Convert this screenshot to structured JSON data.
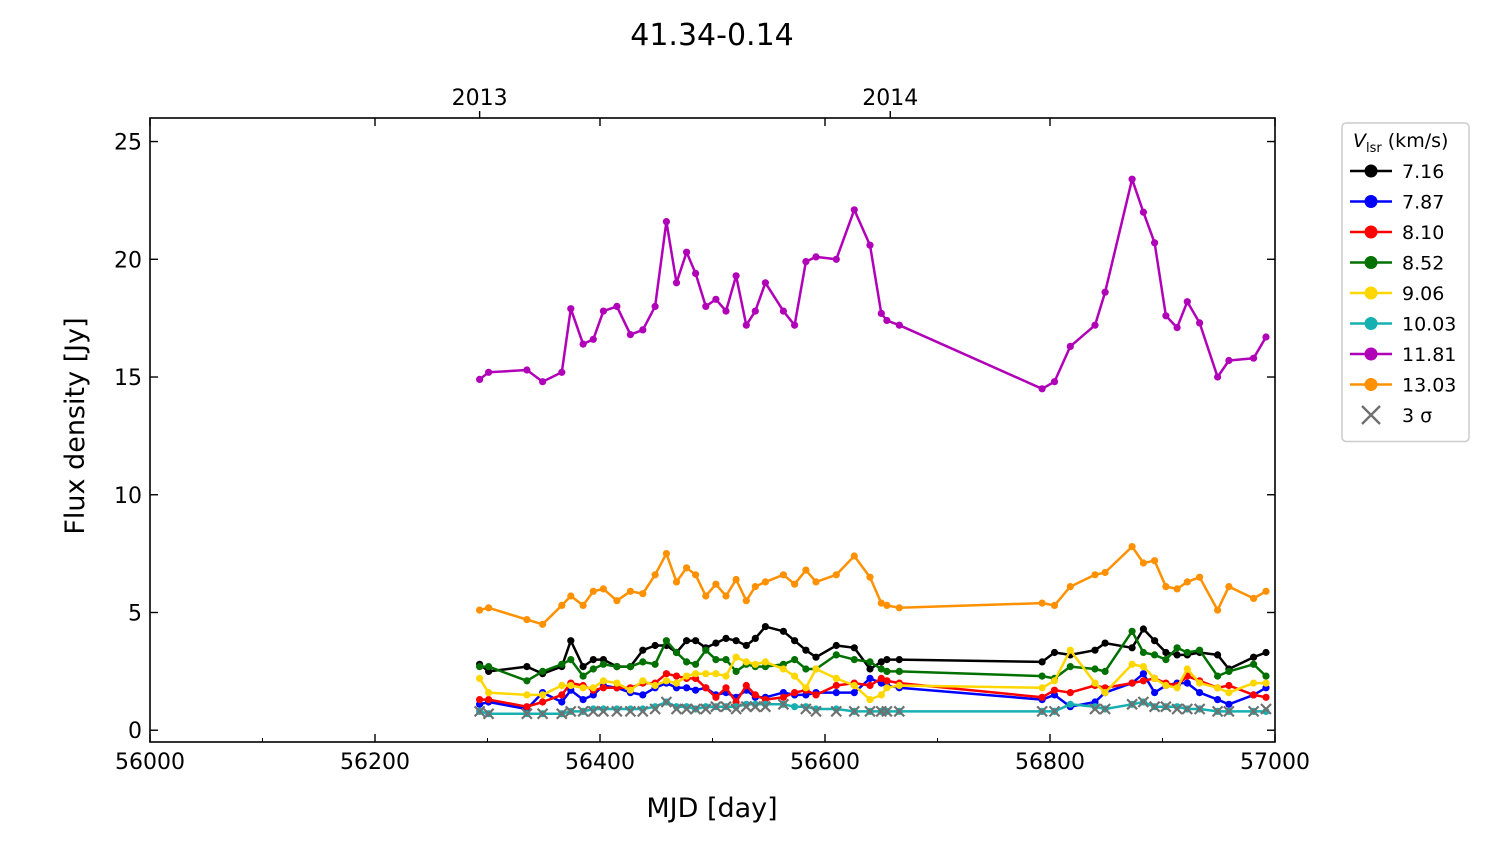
{
  "chart_data": {
    "type": "line",
    "title": "41.34-0.14",
    "xlabel": "MJD [day]",
    "ylabel": "Flux density [Jy]",
    "xlim": [
      56000,
      57000
    ],
    "ylim": [
      -0.5,
      26
    ],
    "xticks": [
      56000,
      56200,
      56400,
      56600,
      56800,
      57000
    ],
    "xtick_labels": [
      "56000",
      "56200",
      "56400",
      "56600",
      "56800",
      "57000"
    ],
    "yticks": [
      0,
      5,
      10,
      15,
      20,
      25
    ],
    "ytick_labels": [
      "0",
      "5",
      "10",
      "15",
      "20",
      "25"
    ],
    "top_axis": {
      "ticks": [
        56293,
        56658
      ],
      "labels": [
        "2013",
        "2014"
      ]
    },
    "grid": false,
    "legend": {
      "placement": "outside-right",
      "title_main": "V",
      "title_sub": "lsr",
      "title_rest": " (km/s)",
      "upper_limit_label": "3 σ"
    },
    "x": [
      56293,
      56301,
      56335,
      56349,
      56366,
      56374,
      56385,
      56394,
      56403,
      56415,
      56427,
      56438,
      56449,
      56459,
      56468,
      56477,
      56485,
      56494,
      56503,
      56512,
      56521,
      56530,
      56538,
      56547,
      56563,
      56573,
      56583,
      56592,
      56610,
      56626,
      56640,
      56650,
      56655,
      56666,
      56793,
      56804,
      56818,
      56840,
      56849,
      56873,
      56883,
      56893,
      56903,
      56913,
      56922,
      56933,
      56949,
      56959,
      56981,
      56992
    ],
    "series": [
      {
        "name": "7.16",
        "color": "#000000",
        "values": [
          2.8,
          2.5,
          2.7,
          2.4,
          2.7,
          3.8,
          2.7,
          3.0,
          3.0,
          2.7,
          2.7,
          3.4,
          3.6,
          3.6,
          3.3,
          3.8,
          3.8,
          3.5,
          3.7,
          3.9,
          3.8,
          3.6,
          3.9,
          4.4,
          4.2,
          3.8,
          3.4,
          3.1,
          3.6,
          3.5,
          2.6,
          2.9,
          3.0,
          3.0,
          2.9,
          3.3,
          3.2,
          3.4,
          3.7,
          3.5,
          4.3,
          3.8,
          3.3,
          3.2,
          3.2,
          3.3,
          3.2,
          2.6,
          3.1,
          3.3
        ]
      },
      {
        "name": "7.87",
        "color": "#0000ff",
        "values": [
          1.1,
          1.2,
          0.9,
          1.6,
          1.2,
          1.7,
          1.3,
          1.5,
          1.9,
          1.8,
          1.6,
          1.5,
          1.8,
          2.0,
          1.8,
          1.8,
          1.7,
          1.8,
          1.5,
          1.6,
          1.4,
          1.7,
          1.4,
          1.4,
          1.6,
          1.5,
          1.5,
          1.6,
          1.6,
          1.6,
          2.2,
          2.0,
          1.9,
          1.8,
          1.3,
          1.5,
          1.0,
          1.2,
          1.6,
          2.0,
          2.4,
          1.6,
          1.9,
          2.0,
          2.0,
          1.6,
          1.3,
          1.1,
          1.5,
          1.8
        ]
      },
      {
        "name": "8.10",
        "color": "#ff0000",
        "values": [
          1.3,
          1.3,
          1.0,
          1.2,
          1.5,
          2.0,
          1.9,
          1.7,
          1.8,
          1.8,
          1.8,
          2.0,
          2.0,
          2.4,
          2.3,
          2.2,
          2.2,
          1.8,
          1.4,
          1.8,
          1.2,
          1.9,
          1.5,
          1.3,
          1.4,
          1.6,
          1.7,
          1.5,
          1.9,
          2.0,
          1.9,
          2.2,
          2.1,
          2.0,
          1.4,
          1.7,
          1.6,
          1.9,
          1.8,
          2.0,
          2.1,
          2.2,
          2.0,
          1.9,
          2.3,
          2.1,
          1.8,
          1.9,
          1.5,
          1.4
        ]
      },
      {
        "name": "8.52",
        "color": "#007000",
        "values": [
          2.7,
          2.7,
          2.1,
          2.5,
          2.8,
          3.0,
          2.3,
          2.6,
          2.8,
          2.7,
          2.7,
          2.9,
          2.8,
          3.8,
          3.3,
          2.9,
          2.8,
          3.4,
          3.0,
          3.0,
          2.5,
          2.8,
          2.7,
          2.7,
          2.8,
          3.0,
          2.6,
          2.6,
          3.2,
          3.0,
          2.9,
          2.6,
          2.5,
          2.5,
          2.3,
          2.2,
          2.7,
          2.6,
          2.5,
          4.2,
          3.3,
          3.2,
          3.0,
          3.5,
          3.3,
          3.4,
          2.3,
          2.5,
          2.8,
          2.3
        ]
      },
      {
        "name": "9.06",
        "color": "#ffd700",
        "values": [
          2.2,
          1.6,
          1.5,
          1.5,
          1.9,
          1.9,
          1.8,
          1.8,
          2.1,
          2.0,
          1.7,
          2.1,
          1.9,
          2.1,
          2.0,
          2.3,
          2.4,
          2.4,
          2.4,
          2.3,
          3.1,
          2.9,
          2.8,
          2.9,
          2.6,
          2.3,
          1.8,
          2.6,
          2.2,
          1.9,
          1.3,
          1.5,
          1.8,
          1.9,
          1.8,
          2.1,
          3.4,
          2.0,
          1.6,
          2.8,
          2.7,
          2.2,
          1.9,
          1.8,
          2.6,
          2.0,
          1.8,
          1.6,
          2.0,
          2.0
        ]
      },
      {
        "name": "10.03",
        "color": "#17b0b0",
        "values": [
          0.8,
          0.7,
          0.7,
          0.7,
          0.7,
          0.8,
          0.8,
          0.9,
          0.9,
          0.9,
          0.9,
          0.9,
          1.0,
          1.2,
          1.0,
          1.0,
          0.9,
          1.0,
          1.0,
          1.0,
          1.0,
          1.1,
          1.1,
          1.1,
          1.1,
          1.0,
          1.0,
          0.9,
          0.9,
          0.8,
          0.8,
          0.8,
          0.8,
          0.8,
          0.8,
          0.8,
          1.1,
          1.0,
          0.9,
          1.1,
          1.2,
          1.0,
          1.0,
          1.0,
          0.9,
          0.9,
          0.8,
          0.8,
          0.8,
          0.8
        ]
      },
      {
        "name": "11.81",
        "color": "#b000b8",
        "values": [
          14.9,
          15.2,
          15.3,
          14.8,
          15.2,
          17.9,
          16.4,
          16.6,
          17.8,
          18.0,
          16.8,
          17.0,
          18.0,
          21.6,
          19.0,
          20.3,
          19.4,
          18.0,
          18.3,
          17.8,
          19.3,
          17.2,
          17.8,
          19.0,
          17.8,
          17.2,
          19.9,
          20.1,
          20.0,
          22.1,
          20.6,
          17.7,
          17.4,
          17.2,
          14.5,
          14.8,
          16.3,
          17.2,
          18.6,
          23.4,
          22.0,
          20.7,
          17.6,
          17.1,
          18.2,
          17.3,
          15.0,
          15.7,
          15.8,
          16.7
        ]
      },
      {
        "name": "13.03",
        "color": "#ff9000",
        "values": [
          5.1,
          5.2,
          4.7,
          4.5,
          5.3,
          5.7,
          5.3,
          5.9,
          6.0,
          5.5,
          5.9,
          5.8,
          6.6,
          7.5,
          6.3,
          6.9,
          6.6,
          5.7,
          6.2,
          5.7,
          6.4,
          5.5,
          6.1,
          6.3,
          6.6,
          6.2,
          6.8,
          6.3,
          6.6,
          7.4,
          6.5,
          5.4,
          5.3,
          5.2,
          5.4,
          5.3,
          6.1,
          6.6,
          6.7,
          7.8,
          7.1,
          7.2,
          6.1,
          6.0,
          6.3,
          6.5,
          5.1,
          6.1,
          5.6,
          5.9
        ]
      }
    ],
    "upper_limits": {
      "name": "3 σ",
      "color": "#707070",
      "x": [
        56293,
        56301,
        56335,
        56349,
        56366,
        56374,
        56385,
        56394,
        56403,
        56415,
        56427,
        56438,
        56449,
        56459,
        56468,
        56477,
        56485,
        56494,
        56503,
        56512,
        56521,
        56530,
        56538,
        56547,
        56563,
        56583,
        56592,
        56610,
        56626,
        56640,
        56650,
        56655,
        56666,
        56793,
        56804,
        56840,
        56849,
        56873,
        56883,
        56893,
        56903,
        56913,
        56922,
        56933,
        56949,
        56959,
        56981,
        56992
      ],
      "values": [
        0.8,
        0.7,
        0.7,
        0.7,
        0.7,
        0.8,
        0.8,
        0.8,
        0.8,
        0.8,
        0.8,
        0.8,
        0.9,
        1.2,
        0.9,
        0.9,
        0.9,
        0.9,
        1.0,
        1.0,
        0.9,
        1.0,
        1.0,
        1.0,
        1.1,
        0.9,
        0.8,
        0.8,
        0.8,
        0.8,
        0.8,
        0.8,
        0.8,
        0.8,
        0.8,
        0.9,
        0.9,
        1.1,
        1.2,
        1.0,
        1.0,
        0.9,
        0.9,
        0.9,
        0.8,
        0.8,
        0.8,
        0.9
      ]
    }
  }
}
